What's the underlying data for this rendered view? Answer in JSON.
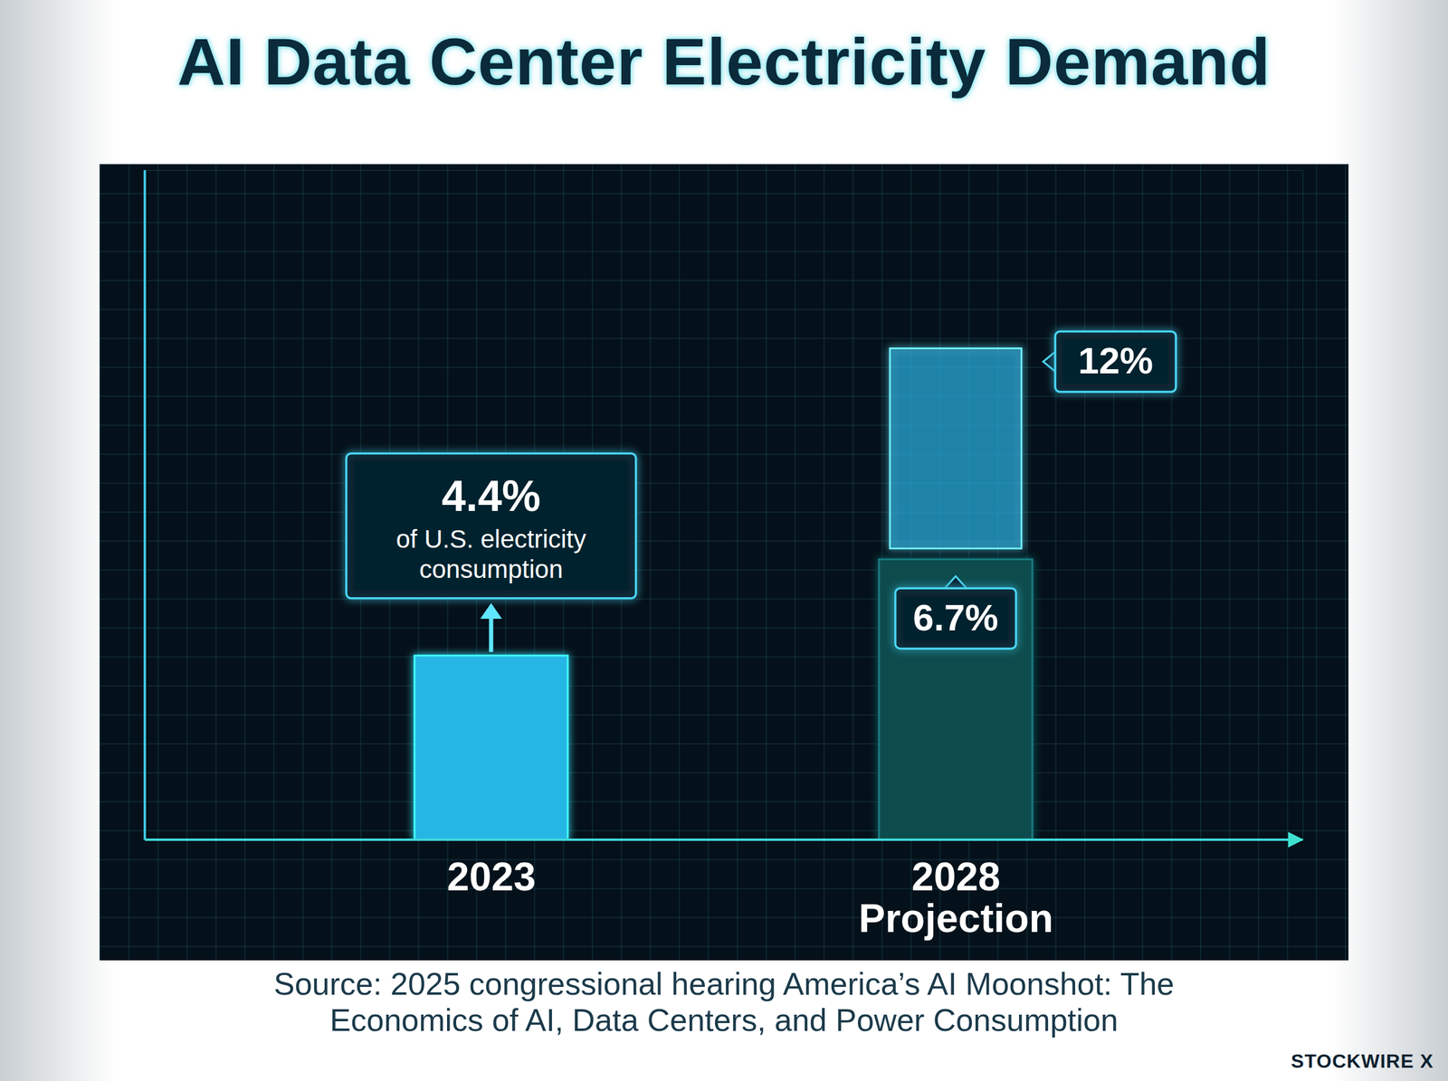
{
  "chart_data": {
    "type": "bar",
    "title": "AI Data Center Electricity Demand",
    "categories": [
      "2023",
      "2028 Projection"
    ],
    "values": [
      4.4,
      6.7
    ],
    "value_labels": [
      "4.4%",
      "6.7%"
    ],
    "high_values": [
      null,
      12
    ],
    "high_value_labels": [
      null,
      "12%"
    ],
    "annotation": "of U.S. electricity consumption",
    "colors": [
      "#27b6e6",
      "#0f4c4e"
    ],
    "ylim": [
      0,
      16
    ],
    "tick_labels": "x",
    "data_labels": true,
    "source": "Source: 2025 congressional hearing America’s AI Moonshot: The Economics of AI, Data Centers, and Power Consumption",
    "brand": "STOCKWIRE X"
  }
}
